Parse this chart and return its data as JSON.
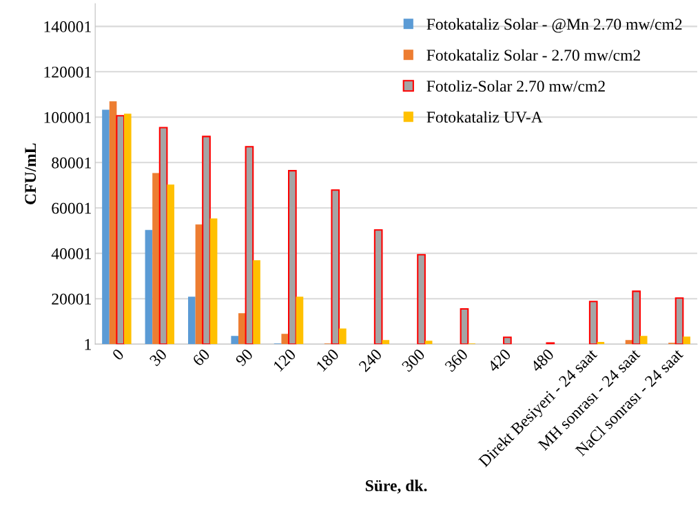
{
  "chart_data": {
    "type": "bar",
    "xlabel": "Süre, dk.",
    "ylabel": "CFU/mL",
    "categories": [
      "0",
      "30",
      "60",
      "90",
      "120",
      "180",
      "240",
      "300",
      "360",
      "420",
      "480",
      "Direkt Besiyeri - 24 saat",
      "MH sonrası - 24 saat",
      "NaCl sonrası - 24 saat"
    ],
    "series": [
      {
        "name": "Fotokataliz Solar - @Mn 2.70 mw/cm2",
        "color": "#5b9bd5",
        "values": [
          103300,
          50300,
          20900,
          3600,
          300,
          null,
          null,
          null,
          null,
          null,
          null,
          null,
          null,
          null
        ]
      },
      {
        "name": "Fotokataliz Solar - 2.70 mw/cm2",
        "color": "#ed7d31",
        "values": [
          107000,
          75400,
          52700,
          13600,
          4500,
          300,
          null,
          null,
          null,
          null,
          null,
          null,
          1800,
          600
        ]
      },
      {
        "name": "Fotoliz-Solar 2.70 mw/cm2",
        "color": "#a5a5a5",
        "values": [
          100600,
          95400,
          91500,
          87000,
          76400,
          67900,
          50300,
          39400,
          15500,
          3000,
          500,
          18800,
          23300,
          20300
        ]
      },
      {
        "name": "Fotokataliz UV-A",
        "color": "#ffc000",
        "values": [
          101500,
          70300,
          55400,
          37000,
          20900,
          6900,
          1800,
          1500,
          300,
          null,
          null,
          1000,
          3600,
          3300
        ]
      }
    ],
    "ylim": [
      1,
      150001
    ],
    "yticks": [
      1,
      20001,
      40001,
      60001,
      80001,
      100001,
      120001,
      140001
    ],
    "grid": "y",
    "legend": "top right"
  }
}
